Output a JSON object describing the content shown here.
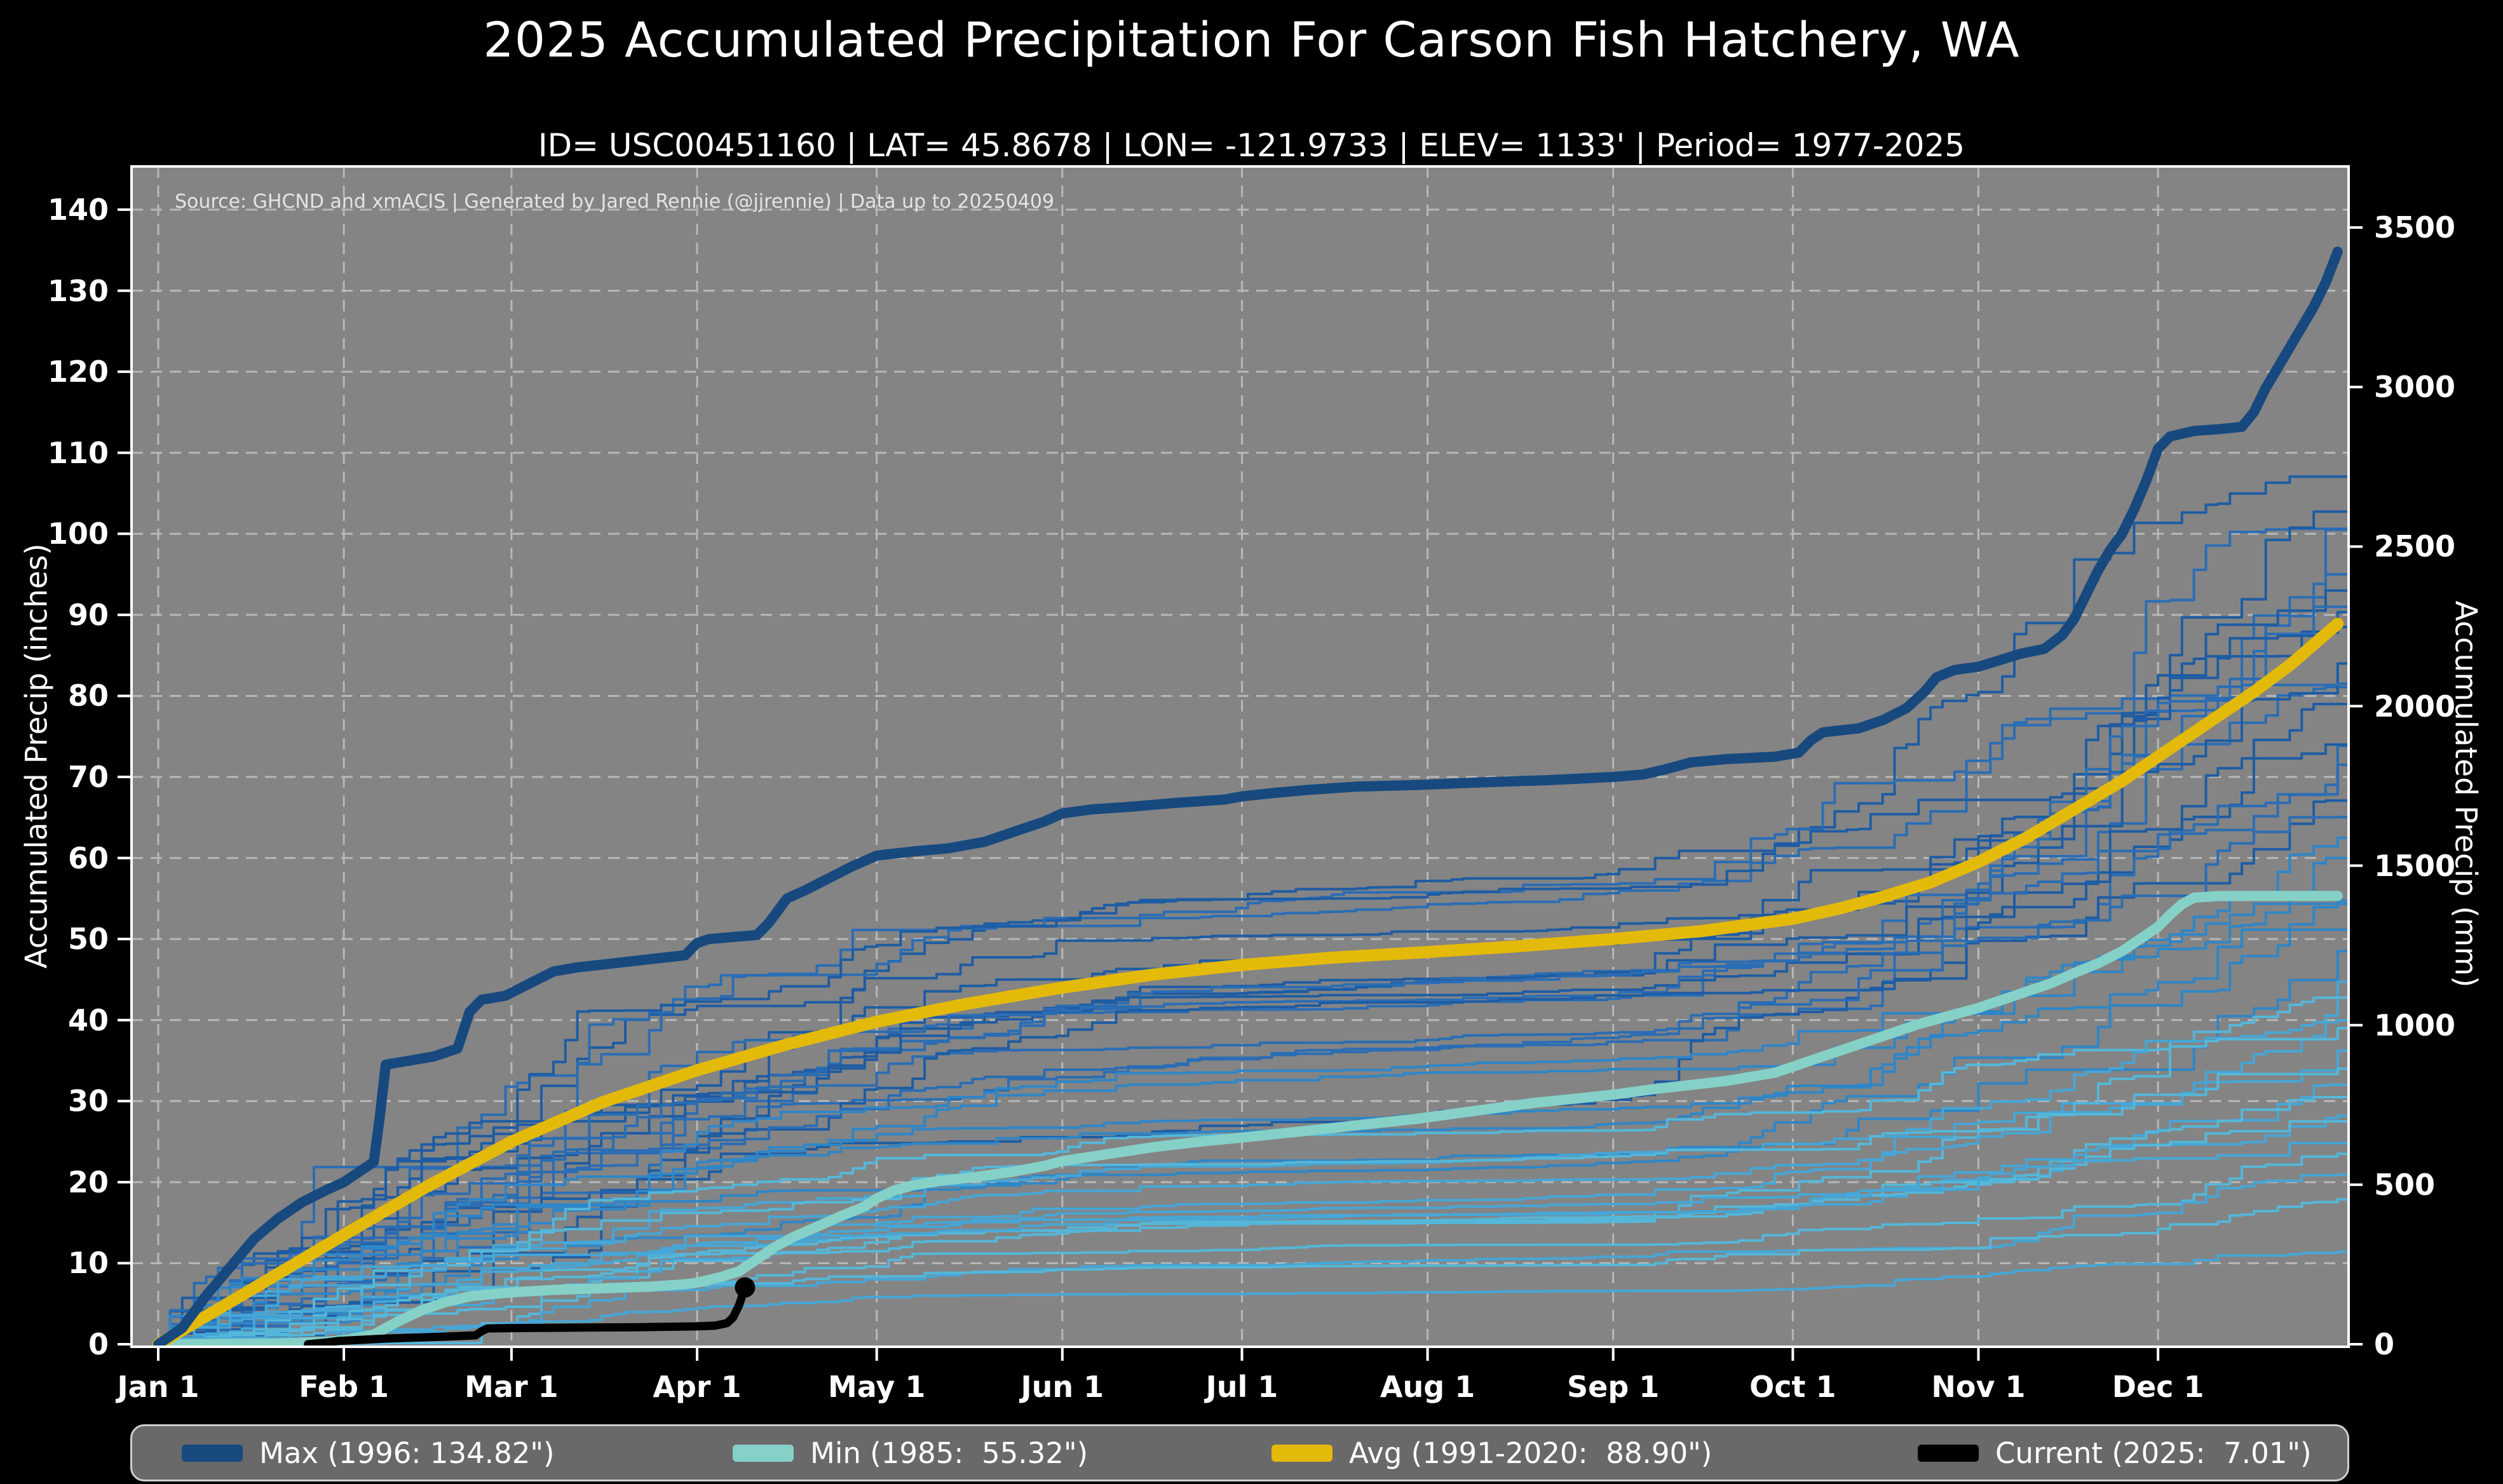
{
  "header": {
    "title": "2025 Accumulated Precipitation For Carson Fish Hatchery, WA",
    "subtitle": "ID= USC00451160 | LAT= 45.8678 | LON= -121.9733 | ELEV= 1133' | Period= 1977-2025"
  },
  "source_note": "Source: GHCND and xmACIS | Generated by Jared Rennie (@jjrennie) | Data up to 20250409",
  "legend": {
    "items": [
      {
        "id": "max",
        "label": "Max (1996: 134.82\")",
        "color": "#17497f"
      },
      {
        "id": "min",
        "label": "Min (1985:  55.32\")",
        "color": "#85d1c8"
      },
      {
        "id": "avg",
        "label": "Avg (1991-2020:  88.90\")",
        "color": "#e4ba0a"
      },
      {
        "id": "current",
        "label": "Current (2025:  7.01\")",
        "color": "#000000"
      }
    ]
  },
  "chart_data": {
    "type": "line",
    "title": "2025 Accumulated Precipitation For Carson Fish Hatchery, WA",
    "x_axis": {
      "tick_labels": [
        "Jan 1",
        "Feb 1",
        "Mar 1",
        "Apr 1",
        "May 1",
        "Jun 1",
        "Jul 1",
        "Aug 1",
        "Sep 1",
        "Oct 1",
        "Nov 1",
        "Dec 1"
      ],
      "tick_days": [
        0,
        31,
        59,
        90,
        120,
        151,
        181,
        212,
        243,
        273,
        304,
        334
      ],
      "range_days": [
        0,
        366
      ]
    },
    "y_left": {
      "label": "Accumulated Precip (inches)",
      "ticks": [
        0,
        10,
        20,
        30,
        40,
        50,
        60,
        70,
        80,
        90,
        100,
        110,
        120,
        130,
        140
      ],
      "range": [
        0,
        145.6
      ]
    },
    "y_right": {
      "label": "Accumulated Precip (mm)",
      "ticks": [
        0,
        500,
        1000,
        1500,
        2000,
        2500,
        3000,
        3500
      ]
    },
    "styles": {
      "fig_bg": "#000000",
      "plot_bg": "#848484",
      "grid": "#b8b8b8",
      "spine": "#ffffff",
      "text": "#ffffff"
    },
    "series": [
      {
        "id": "max",
        "name": "Max (1996: 134.82\")",
        "year": 1996,
        "total_in": 134.82,
        "color": "#17497f",
        "width": 16,
        "points": [
          [
            0,
            0
          ],
          [
            4,
            2
          ],
          [
            8,
            6
          ],
          [
            12,
            9.5
          ],
          [
            16,
            13
          ],
          [
            20,
            15.5
          ],
          [
            24,
            17.5
          ],
          [
            28,
            19
          ],
          [
            31,
            20
          ],
          [
            34,
            21.5
          ],
          [
            36,
            22.5
          ],
          [
            37,
            28
          ],
          [
            38,
            34.5
          ],
          [
            42,
            35
          ],
          [
            46,
            35.5
          ],
          [
            50,
            36.5
          ],
          [
            52,
            41
          ],
          [
            54,
            42.5
          ],
          [
            58,
            43
          ],
          [
            62,
            44.5
          ],
          [
            66,
            46
          ],
          [
            70,
            46.5
          ],
          [
            76,
            47
          ],
          [
            82,
            47.5
          ],
          [
            88,
            48
          ],
          [
            90,
            49.5
          ],
          [
            92,
            50
          ],
          [
            100,
            50.5
          ],
          [
            102,
            52
          ],
          [
            105,
            55
          ],
          [
            108,
            56
          ],
          [
            112,
            57.5
          ],
          [
            116,
            59
          ],
          [
            120,
            60.3
          ],
          [
            126,
            60.8
          ],
          [
            132,
            61.2
          ],
          [
            138,
            62
          ],
          [
            144,
            63.5
          ],
          [
            148,
            64.5
          ],
          [
            151,
            65.5
          ],
          [
            156,
            66
          ],
          [
            162,
            66.3
          ],
          [
            170,
            66.8
          ],
          [
            178,
            67.2
          ],
          [
            181,
            67.6
          ],
          [
            186,
            68
          ],
          [
            192,
            68.4
          ],
          [
            200,
            68.8
          ],
          [
            210,
            69
          ],
          [
            220,
            69.3
          ],
          [
            232,
            69.6
          ],
          [
            243,
            70
          ],
          [
            248,
            70.3
          ],
          [
            252,
            71
          ],
          [
            256,
            71.8
          ],
          [
            262,
            72.2
          ],
          [
            270,
            72.5
          ],
          [
            274,
            73
          ],
          [
            276,
            74.5
          ],
          [
            278,
            75.5
          ],
          [
            284,
            76
          ],
          [
            288,
            77
          ],
          [
            292,
            78.5
          ],
          [
            295,
            80.5
          ],
          [
            297,
            82.3
          ],
          [
            300,
            83.2
          ],
          [
            304,
            83.6
          ],
          [
            308,
            84.5
          ],
          [
            311,
            85.2
          ],
          [
            315,
            85.8
          ],
          [
            318,
            87.5
          ],
          [
            320,
            89.5
          ],
          [
            322,
            92.5
          ],
          [
            324,
            95.5
          ],
          [
            326,
            98
          ],
          [
            328,
            100
          ],
          [
            330,
            103
          ],
          [
            332,
            106.5
          ],
          [
            334,
            110.5
          ],
          [
            336,
            112
          ],
          [
            340,
            112.7
          ],
          [
            344,
            112.9
          ],
          [
            348,
            113.2
          ],
          [
            350,
            115
          ],
          [
            352,
            118
          ],
          [
            354,
            120.5
          ],
          [
            356,
            123
          ],
          [
            358,
            125.5
          ],
          [
            360,
            128
          ],
          [
            362,
            131
          ],
          [
            364,
            134.82
          ]
        ]
      },
      {
        "id": "min",
        "name": "Min (1985:  55.32\")",
        "year": 1985,
        "total_in": 55.32,
        "color": "#85d1c8",
        "width": 16,
        "points": [
          [
            0,
            0
          ],
          [
            10,
            0.05
          ],
          [
            20,
            0.1
          ],
          [
            28,
            0.3
          ],
          [
            31,
            0.5
          ],
          [
            36,
            1.2
          ],
          [
            40,
            2.8
          ],
          [
            44,
            4.2
          ],
          [
            48,
            5.2
          ],
          [
            52,
            5.9
          ],
          [
            56,
            6.2
          ],
          [
            59,
            6.4
          ],
          [
            66,
            6.7
          ],
          [
            74,
            6.9
          ],
          [
            82,
            7.1
          ],
          [
            88,
            7.4
          ],
          [
            90,
            7.6
          ],
          [
            94,
            8.3
          ],
          [
            97,
            9
          ],
          [
            100,
            10.5
          ],
          [
            103,
            12
          ],
          [
            106,
            13.2
          ],
          [
            110,
            14.5
          ],
          [
            114,
            15.8
          ],
          [
            118,
            17
          ],
          [
            120,
            18
          ],
          [
            123,
            19
          ],
          [
            126,
            19.6
          ],
          [
            130,
            20.1
          ],
          [
            136,
            20.6
          ],
          [
            142,
            21.2
          ],
          [
            148,
            22
          ],
          [
            151,
            22.6
          ],
          [
            158,
            23.4
          ],
          [
            166,
            24.3
          ],
          [
            174,
            25
          ],
          [
            181,
            25.5
          ],
          [
            190,
            26.2
          ],
          [
            200,
            27
          ],
          [
            210,
            27.8
          ],
          [
            220,
            28.8
          ],
          [
            230,
            29.8
          ],
          [
            238,
            30.4
          ],
          [
            243,
            30.8
          ],
          [
            250,
            31.5
          ],
          [
            256,
            32
          ],
          [
            262,
            32.5
          ],
          [
            266,
            33
          ],
          [
            270,
            33.5
          ],
          [
            274,
            34.5
          ],
          [
            278,
            35.5
          ],
          [
            282,
            36.5
          ],
          [
            286,
            37.5
          ],
          [
            290,
            38.5
          ],
          [
            294,
            39.5
          ],
          [
            298,
            40.3
          ],
          [
            304,
            41.5
          ],
          [
            308,
            42.5
          ],
          [
            312,
            43.5
          ],
          [
            316,
            44.5
          ],
          [
            320,
            45.8
          ],
          [
            324,
            47
          ],
          [
            328,
            48.5
          ],
          [
            330,
            49.5
          ],
          [
            332,
            50.5
          ],
          [
            334,
            51.5
          ],
          [
            336,
            53
          ],
          [
            338,
            54.3
          ],
          [
            340,
            55.1
          ],
          [
            344,
            55.3
          ],
          [
            364,
            55.32
          ]
        ]
      },
      {
        "id": "avg",
        "name": "Avg (1991-2020:  88.90\")",
        "period": "1991-2020",
        "total_in": 88.9,
        "color": "#e4ba0a",
        "width": 19,
        "points": [
          [
            0,
            0
          ],
          [
            15,
            6.5
          ],
          [
            31,
            13.5
          ],
          [
            45,
            19.5
          ],
          [
            59,
            25
          ],
          [
            74,
            29.8
          ],
          [
            90,
            33.8
          ],
          [
            105,
            37
          ],
          [
            120,
            39.8
          ],
          [
            135,
            42
          ],
          [
            151,
            44
          ],
          [
            166,
            45.6
          ],
          [
            181,
            46.8
          ],
          [
            196,
            47.7
          ],
          [
            212,
            48.4
          ],
          [
            227,
            49.1
          ],
          [
            243,
            50
          ],
          [
            258,
            51
          ],
          [
            273,
            52.5
          ],
          [
            281,
            53.8
          ],
          [
            288,
            55.2
          ],
          [
            296,
            57
          ],
          [
            304,
            59.5
          ],
          [
            312,
            62.5
          ],
          [
            320,
            66
          ],
          [
            328,
            69.5
          ],
          [
            334,
            72.5
          ],
          [
            342,
            76.5
          ],
          [
            350,
            80.5
          ],
          [
            356,
            83.8
          ],
          [
            364,
            88.9
          ]
        ]
      },
      {
        "id": "current",
        "name": "Current (2025:  7.01\")",
        "year": 2025,
        "total_in": 7.01,
        "color": "#000000",
        "width": 13,
        "end_dot": true,
        "points": [
          [
            25,
            0
          ],
          [
            28,
            0.2
          ],
          [
            30,
            0.4
          ],
          [
            34,
            0.55
          ],
          [
            38,
            0.7
          ],
          [
            44,
            0.85
          ],
          [
            50,
            1.0
          ],
          [
            53,
            1.1
          ],
          [
            54,
            1.6
          ],
          [
            55,
            1.95
          ],
          [
            60,
            2.0
          ],
          [
            70,
            2.05
          ],
          [
            80,
            2.1
          ],
          [
            90,
            2.2
          ],
          [
            93,
            2.3
          ],
          [
            95,
            2.6
          ],
          [
            96,
            3.3
          ],
          [
            97,
            4.8
          ],
          [
            98,
            7.01
          ]
        ]
      }
    ],
    "background_years": {
      "description": "individual years 1977-2024, thin staircase lines",
      "palette": {
        "dark1": "#1e5ca3",
        "dark2": "#2a6db5",
        "mid": "#2f86c7",
        "light1": "#46a6d6",
        "light2": "#55b7d9"
      },
      "line_width": 4,
      "lines": [
        {
          "total": 112,
          "shade": "dark1",
          "seed": 11
        },
        {
          "total": 107,
          "shade": "dark2",
          "seed": 23
        },
        {
          "total": 104,
          "shade": "dark1",
          "seed": 35
        },
        {
          "total": 100.5,
          "shade": "dark2",
          "seed": 47
        },
        {
          "total": 97,
          "shade": "dark1",
          "seed": 59
        },
        {
          "total": 95,
          "shade": "dark2",
          "seed": 71
        },
        {
          "total": 93,
          "shade": "dark1",
          "seed": 83
        },
        {
          "total": 91,
          "shade": "dark2",
          "seed": 95
        },
        {
          "total": 88.5,
          "shade": "dark1",
          "seed": 107
        },
        {
          "total": 86,
          "shade": "dark2",
          "seed": 119
        },
        {
          "total": 84,
          "shade": "dark1",
          "seed": 131
        },
        {
          "total": 81.5,
          "shade": "dark2",
          "seed": 143
        },
        {
          "total": 79,
          "shade": "dark1",
          "seed": 155
        },
        {
          "total": 76.5,
          "shade": "dark2",
          "seed": 167
        },
        {
          "total": 74,
          "shade": "dark1",
          "seed": 179
        },
        {
          "total": 71.5,
          "shade": "dark2",
          "seed": 191
        },
        {
          "total": 68.5,
          "shade": "dark1",
          "seed": 203
        },
        {
          "total": 65.5,
          "shade": "dark2",
          "seed": 215
        },
        {
          "total": 62.5,
          "shade": "mid",
          "seed": 227
        },
        {
          "total": 60,
          "shade": "mid",
          "seed": 239
        },
        {
          "total": 57.5,
          "shade": "mid",
          "seed": 251
        },
        {
          "total": 54.5,
          "shade": "mid",
          "seed": 263
        },
        {
          "total": 51.5,
          "shade": "mid",
          "seed": 275
        },
        {
          "total": 48.5,
          "shade": "mid",
          "seed": 287
        },
        {
          "total": 46,
          "shade": "light1",
          "seed": 299
        },
        {
          "total": 43.5,
          "shade": "light2",
          "seed": 311
        },
        {
          "total": 41,
          "shade": "light1",
          "seed": 323
        },
        {
          "total": 39,
          "shade": "light2",
          "seed": 335
        },
        {
          "total": 36.5,
          "shade": "light1",
          "seed": 347
        },
        {
          "total": 34,
          "shade": "light2",
          "seed": 359
        },
        {
          "total": 32,
          "shade": "light1",
          "seed": 371
        },
        {
          "total": 30.5,
          "shade": "light2",
          "seed": 383
        },
        {
          "total": 29,
          "shade": "light1",
          "seed": 395
        },
        {
          "total": 27.5,
          "shade": "light2",
          "seed": 407
        },
        {
          "total": 25.5,
          "shade": "light1",
          "seed": 419
        },
        {
          "total": 23.5,
          "shade": "light2",
          "seed": 431
        },
        {
          "total": 21,
          "shade": "light1",
          "seed": 443
        },
        {
          "total": 18,
          "shade": "light2",
          "seed": 455
        },
        {
          "total": 12,
          "shade": "light1",
          "seed": 467
        }
      ]
    }
  }
}
